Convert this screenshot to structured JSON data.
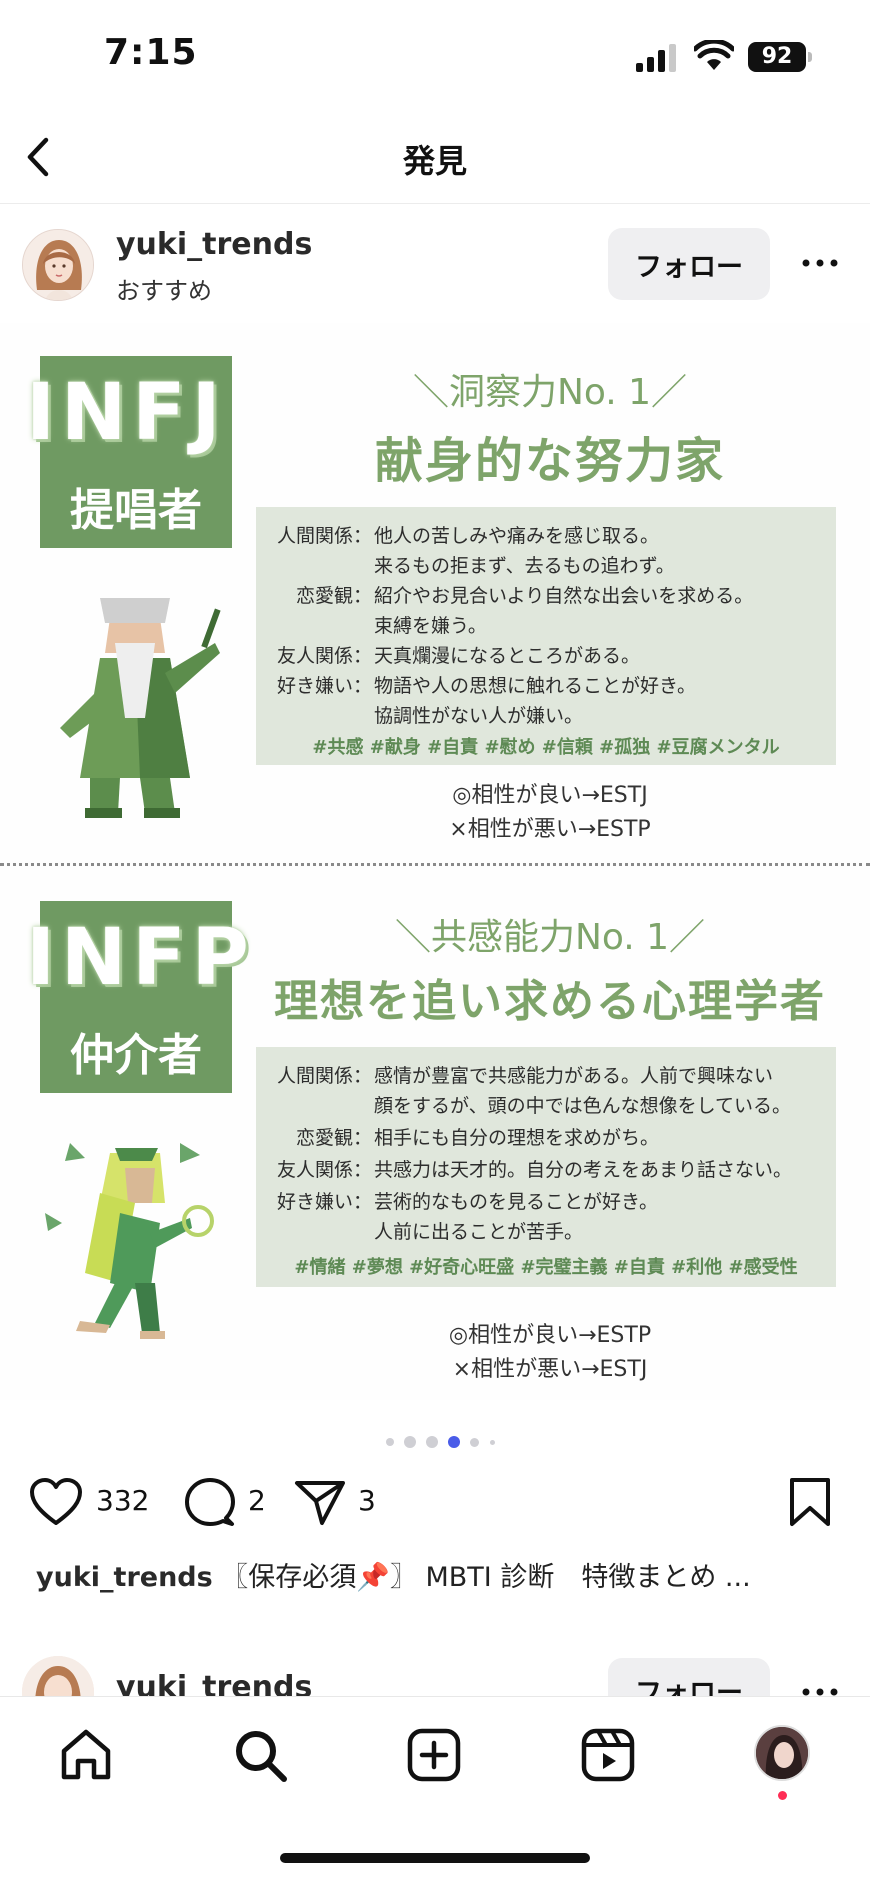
{
  "status_bar": {
    "time": "7:15",
    "battery": "92"
  },
  "nav": {
    "title": "発見"
  },
  "post": {
    "username": "yuki_trends",
    "subtitle": "おすすめ",
    "follow_label": "フォロー",
    "image": {
      "infj": {
        "code": "INFJ",
        "role": "提唱者",
        "tagline": "＼洞察力No. 1／",
        "headline": "献身的な努力家",
        "rows": [
          {
            "label": "人間関係：",
            "lines": [
              "他人の苦しみや痛みを感じ取る。",
              "来るもの拒まず、去るもの追わず。"
            ]
          },
          {
            "label": "恋愛観：",
            "lines": [
              "紹介やお見合いより自然な出会いを求める。",
              "束縛を嫌う。"
            ]
          },
          {
            "label": "友人関係：",
            "lines": [
              "天真爛漫になるところがある。"
            ]
          },
          {
            "label": "好き嫌い：",
            "lines": [
              "物語や人の思想に触れることが好き。",
              "協調性がない人が嫌い。"
            ]
          }
        ],
        "tags": "#共感 #献身 #自責 #慰め #信頼 #孤独 #豆腐メンタル",
        "good_match": "◎相性が良い→ESTJ",
        "bad_match": "×相性が悪い→ESTP"
      },
      "infp": {
        "code": "INFP",
        "role": "仲介者",
        "tagline": "＼共感能力No. 1／",
        "headline": "理想を追い求める心理学者",
        "rows": [
          {
            "label": "人間関係：",
            "lines": [
              "感情が豊富で共感能力がある。人前で興味ない",
              "顔をするが、頭の中では色んな想像をしている。"
            ]
          },
          {
            "label": "恋愛観：",
            "lines": [
              "相手にも自分の理想を求めがち。"
            ]
          },
          {
            "label": "友人関係：",
            "lines": [
              "共感力は天才的。自分の考えをあまり話さない。"
            ]
          },
          {
            "label": "好き嫌い：",
            "lines": [
              "芸術的なものを見ることが好き。",
              "人前に出ることが苦手。"
            ]
          }
        ],
        "tags": "#情緒 #夢想 #好奇心旺盛 #完璧主義 #自責 #利他 #感受性",
        "good_match": "◎相性が良い→ESTP",
        "bad_match": "×相性が悪い→ESTJ"
      }
    },
    "carousel": {
      "count": 6,
      "active_index": 3
    },
    "likes": "332",
    "comments": "2",
    "shares": "3",
    "caption_user": "yuki_trends",
    "caption_text": "〖保存必須📌〗 MBTI 診断　特徴まとめ ..."
  },
  "next_post": {
    "username": "yuki_trends",
    "follow_label": "フォロー"
  },
  "colors": {
    "accent_green": "#7ea46a",
    "badge_green": "#6f9a62",
    "box_bg": "#e0e7dc",
    "dot_active": "#4a5ce8",
    "notif": "#ff2d55"
  },
  "icons": {
    "back": "chevron-left-icon",
    "more": "more-horizontal-icon",
    "like": "heart-icon",
    "comment": "comment-icon",
    "share": "send-icon",
    "save": "bookmark-icon",
    "home": "home-icon",
    "search": "search-icon",
    "create": "plus-square-icon",
    "reels": "reels-icon"
  }
}
